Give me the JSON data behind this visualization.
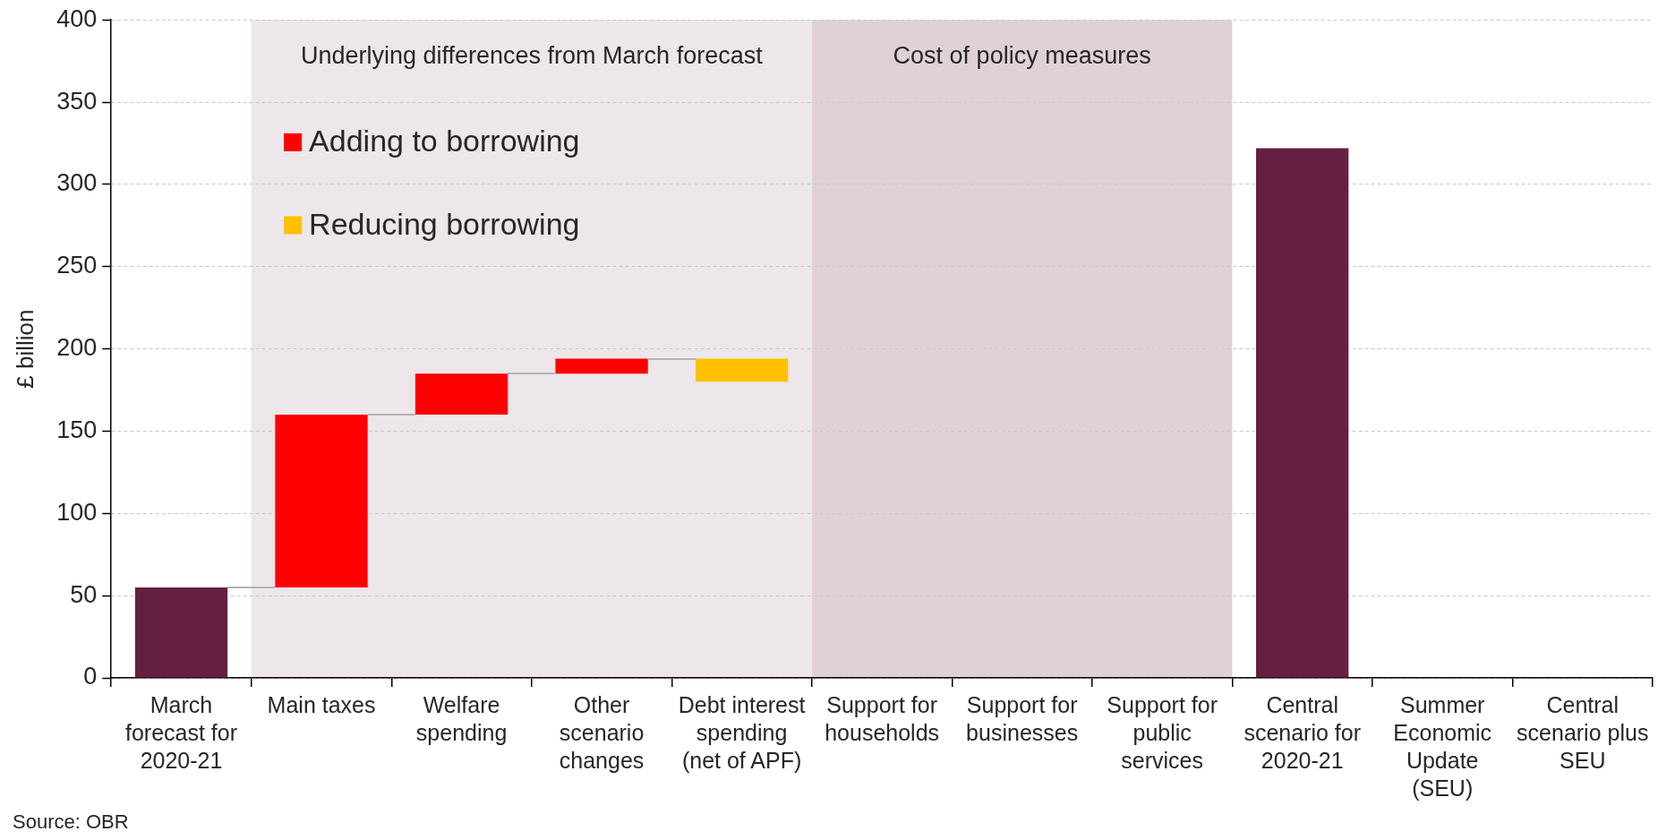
{
  "chart_data": {
    "type": "bar",
    "ylabel": "£ billion",
    "categories": [
      "March forecast for 2020-21",
      "Main taxes",
      "Welfare spending",
      "Other scenario changes",
      "Debt interest spending (net of APF)",
      "Support for households",
      "Support for businesses",
      "Support for public services",
      "Central scenario for 2020-21",
      "Summer Economic Update (SEU)",
      "Central scenario plus SEU"
    ],
    "series": [
      {
        "color": "#66203f",
        "values": [
          55,
          null,
          null,
          null,
          null,
          null,
          null,
          null,
          322,
          null,
          null
        ]
      },
      {
        "name": "Adding to borrowing",
        "color": "#ff0000",
        "values": [
          null,
          105,
          25,
          9,
          null,
          null,
          null,
          null,
          null,
          null,
          null
        ],
        "base": [
          null,
          55,
          160,
          185,
          null,
          null,
          null,
          null,
          null,
          null,
          null
        ]
      },
      {
        "name": "Reducing borrowing",
        "color": "#ffc000",
        "values": [
          null,
          null,
          null,
          null,
          -14,
          null,
          null,
          null,
          null,
          null,
          null
        ],
        "base": [
          null,
          null,
          null,
          null,
          194,
          null,
          null,
          null,
          null,
          null,
          null
        ]
      }
    ],
    "ylim": [
      0,
      400
    ],
    "yticks": [
      0,
      50,
      100,
      150,
      200,
      250,
      300,
      350,
      400
    ],
    "grid": "y",
    "legend": "top left",
    "bands": [
      {
        "axis": "x",
        "from": "Main taxes",
        "to": "Debt interest spending (net of APF)",
        "label": "Underlying differences from March forecast",
        "color": "#ede6ea"
      },
      {
        "axis": "x",
        "from": "Support for households",
        "to": "Support for public services",
        "label": "Cost of policy measures",
        "color": "#e0d1d9"
      }
    ],
    "annotations": [
      "Source: OBR"
    ]
  }
}
